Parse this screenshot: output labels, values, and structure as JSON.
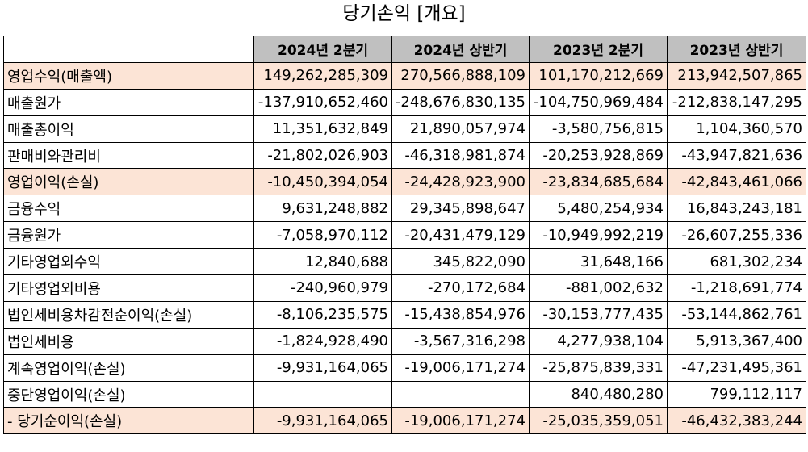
{
  "title": "당기손익 [개요]",
  "columns": [
    "",
    "2024년 2분기",
    "2024년 상반기",
    "2023년 2분기",
    "2023년 상반기"
  ],
  "rows": [
    {
      "label": "영업수익(매출액)",
      "values": [
        "149,262,285,309",
        "270,566,888,109",
        "101,170,212,669",
        "213,942,507,865"
      ],
      "highlight": true
    },
    {
      "label": "매출원가",
      "values": [
        "-137,910,652,460",
        "-248,676,830,135",
        "-104,750,969,484",
        "-212,838,147,295"
      ],
      "highlight": false
    },
    {
      "label": "매출총이익",
      "values": [
        "11,351,632,849",
        "21,890,057,974",
        "-3,580,756,815",
        "1,104,360,570"
      ],
      "highlight": false
    },
    {
      "label": "판매비와관리비",
      "values": [
        "-21,802,026,903",
        "-46,318,981,874",
        "-20,253,928,869",
        "-43,947,821,636"
      ],
      "highlight": false
    },
    {
      "label": "영업이익(손실)",
      "values": [
        "-10,450,394,054",
        "-24,428,923,900",
        "-23,834,685,684",
        "-42,843,461,066"
      ],
      "highlight": true
    },
    {
      "label": "금융수익",
      "values": [
        "9,631,248,882",
        "29,345,898,647",
        "5,480,254,934",
        "16,843,243,181"
      ],
      "highlight": false
    },
    {
      "label": "금융원가",
      "values": [
        "-7,058,970,112",
        "-20,431,479,129",
        "-10,949,992,219",
        "-26,607,255,336"
      ],
      "highlight": false
    },
    {
      "label": "기타영업외수익",
      "values": [
        "12,840,688",
        "345,822,090",
        "31,648,166",
        "681,302,234"
      ],
      "highlight": false
    },
    {
      "label": "기타영업외비용",
      "values": [
        "-240,960,979",
        "-270,172,684",
        "-881,002,632",
        "-1,218,691,774"
      ],
      "highlight": false
    },
    {
      "label": "법인세비용차감전순이익(손실)",
      "values": [
        "-8,106,235,575",
        "-15,438,854,976",
        "-30,153,777,435",
        "-53,144,862,761"
      ],
      "highlight": false
    },
    {
      "label": "법인세비용",
      "values": [
        "-1,824,928,490",
        "-3,567,316,298",
        "4,277,938,104",
        "5,913,367,400"
      ],
      "highlight": false
    },
    {
      "label": "계속영업이익(손실)",
      "values": [
        "-9,931,164,065",
        "-19,006,171,274",
        "-25,875,839,331",
        "-47,231,495,361"
      ],
      "highlight": false
    },
    {
      "label": "중단영업이익(손실)",
      "values": [
        "",
        "",
        "840,480,280",
        "799,112,117"
      ],
      "highlight": false
    },
    {
      "label": "- 당기순이익(손실)",
      "values": [
        "-9,931,164,065",
        "-19,006,171,274",
        "-25,035,359,051",
        "-46,432,383,244"
      ],
      "highlight": true
    }
  ]
}
